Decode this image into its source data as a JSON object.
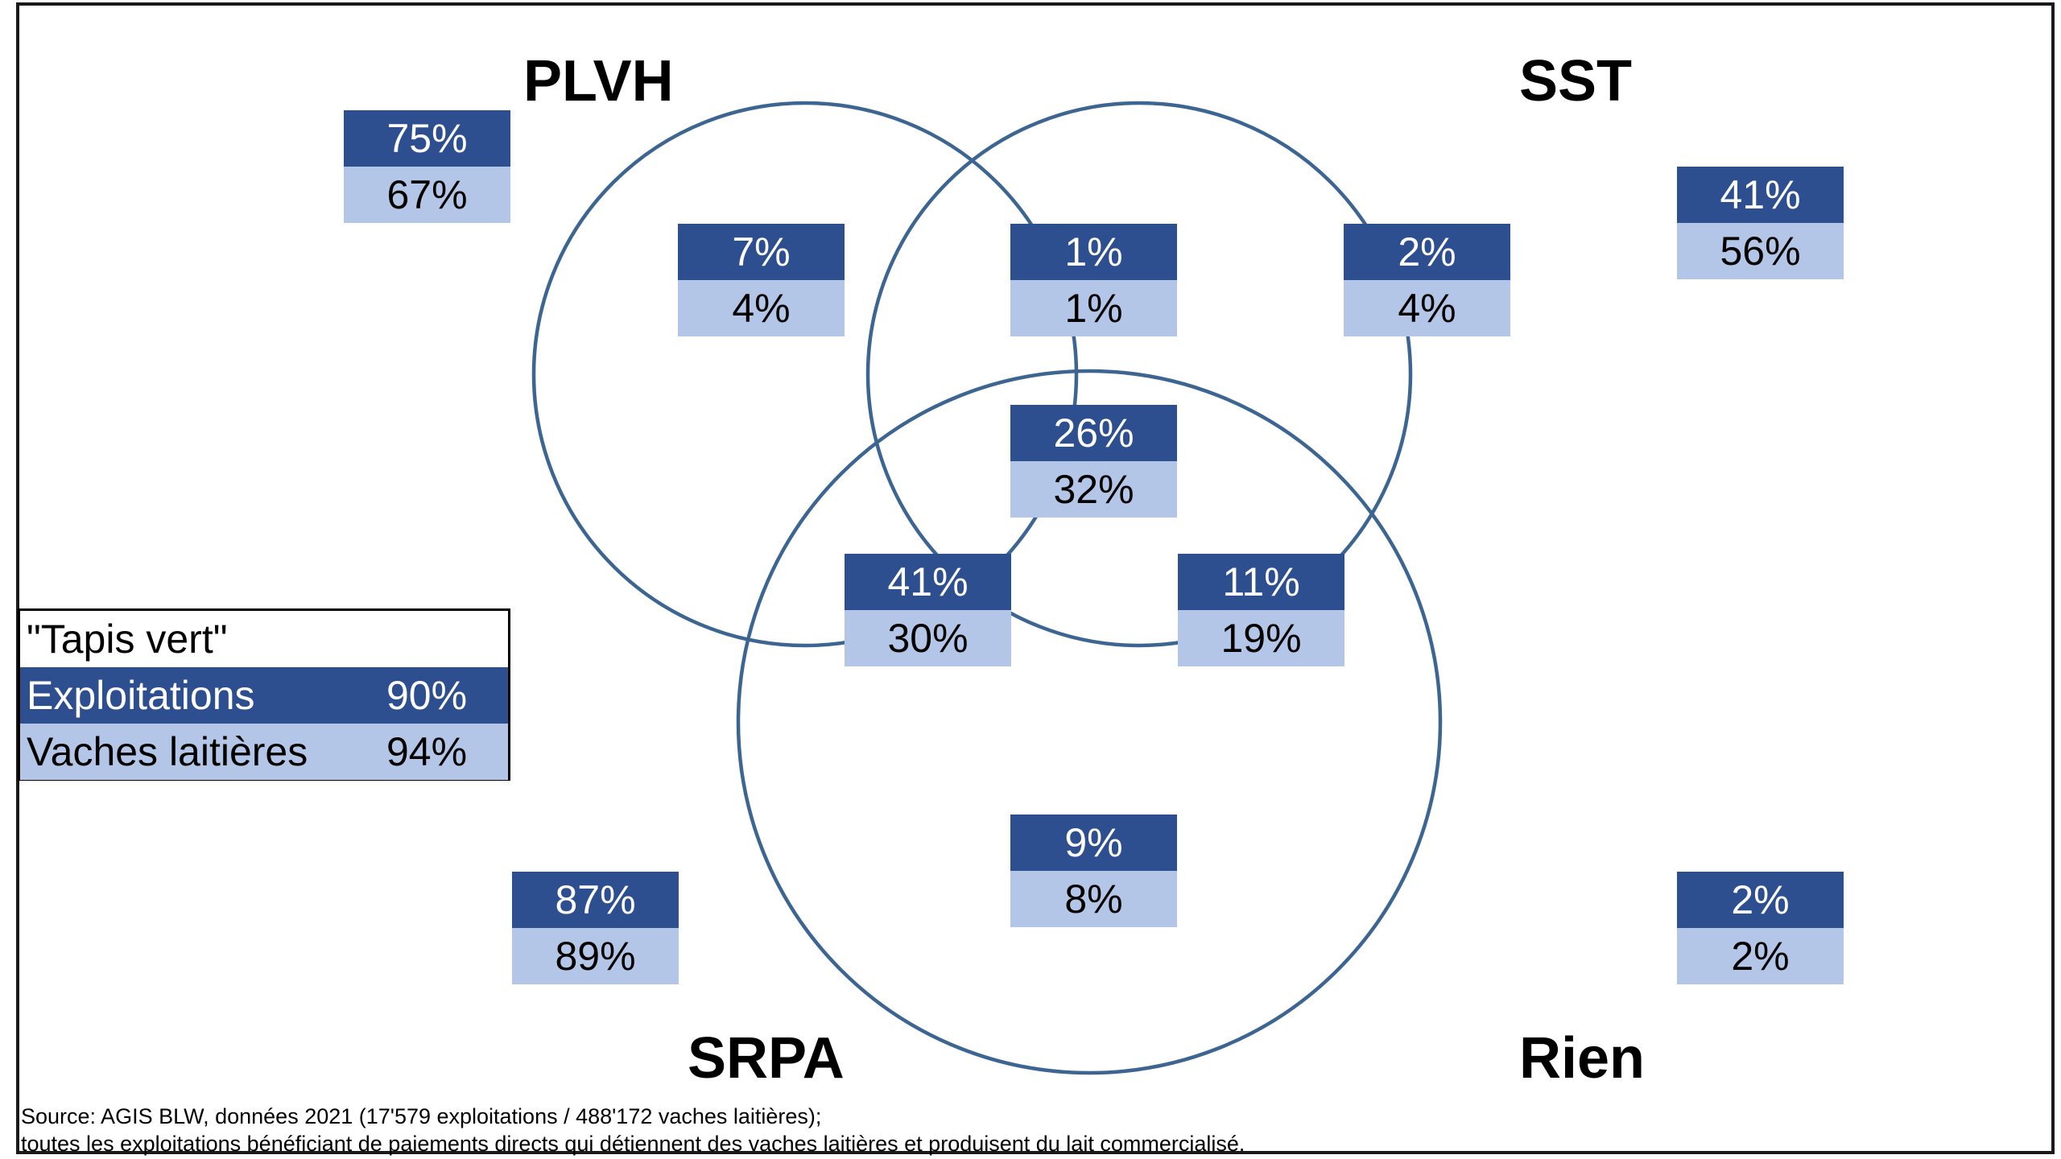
{
  "diagram": {
    "type": "venn",
    "sets": {
      "plvh": "PLVH",
      "sst": "SST",
      "srpa": "SRPA",
      "none": "Rien"
    },
    "colors": {
      "circle": "#3d6591",
      "exploitations": "#2e4f8f",
      "vaches": "#b4c6e7"
    },
    "regions": [
      {
        "id": "plvh_total",
        "exploitations": "75%",
        "vaches": "67%"
      },
      {
        "id": "sst_total",
        "exploitations": "41%",
        "vaches": "56%"
      },
      {
        "id": "srpa_total",
        "exploitations": "87%",
        "vaches": "89%"
      },
      {
        "id": "rien",
        "exploitations": "2%",
        "vaches": "2%"
      },
      {
        "id": "plvh_only",
        "exploitations": "7%",
        "vaches": "4%"
      },
      {
        "id": "plvh_sst",
        "exploitations": "1%",
        "vaches": "1%"
      },
      {
        "id": "sst_only",
        "exploitations": "2%",
        "vaches": "4%"
      },
      {
        "id": "all_three",
        "exploitations": "26%",
        "vaches": "32%"
      },
      {
        "id": "plvh_srpa",
        "exploitations": "41%",
        "vaches": "30%"
      },
      {
        "id": "sst_srpa",
        "exploitations": "11%",
        "vaches": "19%"
      },
      {
        "id": "srpa_only",
        "exploitations": "9%",
        "vaches": "8%"
      }
    ]
  },
  "legend": {
    "title": "\"Tapis vert\"",
    "rows": [
      {
        "label": "Exploitations",
        "value": "90%"
      },
      {
        "label": "Vaches laitières",
        "value": "94%"
      }
    ]
  },
  "source": {
    "line1": "Source: AGIS BLW, données 2021 (17'579 exploitations / 488'172 vaches laitières);",
    "line2": "toutes les exploitations bénéficiant de paiements directs qui détiennent des vaches laitières et produisent du lait commercialisé."
  }
}
